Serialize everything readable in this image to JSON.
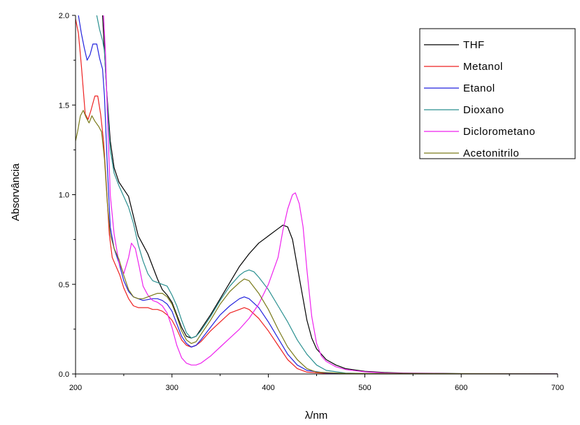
{
  "chart_data": {
    "type": "line",
    "title": "",
    "xlabel": "λ/nm",
    "ylabel": "Absorvância",
    "xlim": [
      200,
      700
    ],
    "ylim": [
      0,
      2.0
    ],
    "x_ticks": [
      "200",
      "300",
      "400",
      "500",
      "600",
      "700"
    ],
    "y_ticks": [
      "0.0",
      "0.5",
      "1.0",
      "1.5",
      "2.0"
    ],
    "grid": false,
    "legend_position": "top-right",
    "series": [
      {
        "name": "THF",
        "color": "#000000",
        "points": [
          [
            228,
            2.0
          ],
          [
            232,
            1.6
          ],
          [
            236,
            1.3
          ],
          [
            240,
            1.15
          ],
          [
            245,
            1.07
          ],
          [
            250,
            1.03
          ],
          [
            255,
            0.99
          ],
          [
            260,
            0.88
          ],
          [
            265,
            0.77
          ],
          [
            270,
            0.72
          ],
          [
            275,
            0.67
          ],
          [
            280,
            0.6
          ],
          [
            285,
            0.53
          ],
          [
            290,
            0.47
          ],
          [
            295,
            0.44
          ],
          [
            300,
            0.4
          ],
          [
            305,
            0.33
          ],
          [
            310,
            0.26
          ],
          [
            315,
            0.21
          ],
          [
            320,
            0.2
          ],
          [
            325,
            0.21
          ],
          [
            330,
            0.25
          ],
          [
            340,
            0.33
          ],
          [
            350,
            0.42
          ],
          [
            360,
            0.51
          ],
          [
            370,
            0.6
          ],
          [
            380,
            0.67
          ],
          [
            390,
            0.73
          ],
          [
            400,
            0.77
          ],
          [
            410,
            0.81
          ],
          [
            415,
            0.83
          ],
          [
            420,
            0.82
          ],
          [
            425,
            0.75
          ],
          [
            430,
            0.6
          ],
          [
            435,
            0.45
          ],
          [
            440,
            0.3
          ],
          [
            445,
            0.2
          ],
          [
            450,
            0.14
          ],
          [
            460,
            0.08
          ],
          [
            470,
            0.05
          ],
          [
            480,
            0.03
          ],
          [
            500,
            0.015
          ],
          [
            520,
            0.008
          ],
          [
            540,
            0.005
          ],
          [
            600,
            0.002
          ],
          [
            700,
            0.001
          ]
        ]
      },
      {
        "name": "Metanol",
        "color": "#ee2222",
        "points": [
          [
            200,
            1.98
          ],
          [
            203,
            1.9
          ],
          [
            206,
            1.72
          ],
          [
            210,
            1.45
          ],
          [
            213,
            1.42
          ],
          [
            216,
            1.47
          ],
          [
            220,
            1.55
          ],
          [
            223,
            1.55
          ],
          [
            226,
            1.45
          ],
          [
            229,
            1.3
          ],
          [
            232,
            1.05
          ],
          [
            235,
            0.78
          ],
          [
            238,
            0.65
          ],
          [
            242,
            0.6
          ],
          [
            246,
            0.55
          ],
          [
            250,
            0.48
          ],
          [
            255,
            0.42
          ],
          [
            260,
            0.38
          ],
          [
            265,
            0.37
          ],
          [
            270,
            0.37
          ],
          [
            275,
            0.37
          ],
          [
            280,
            0.36
          ],
          [
            285,
            0.36
          ],
          [
            290,
            0.35
          ],
          [
            295,
            0.33
          ],
          [
            300,
            0.3
          ],
          [
            305,
            0.25
          ],
          [
            310,
            0.19
          ],
          [
            315,
            0.16
          ],
          [
            320,
            0.15
          ],
          [
            325,
            0.16
          ],
          [
            330,
            0.18
          ],
          [
            340,
            0.24
          ],
          [
            350,
            0.29
          ],
          [
            360,
            0.34
          ],
          [
            370,
            0.36
          ],
          [
            375,
            0.37
          ],
          [
            380,
            0.36
          ],
          [
            390,
            0.31
          ],
          [
            400,
            0.24
          ],
          [
            410,
            0.16
          ],
          [
            420,
            0.08
          ],
          [
            430,
            0.03
          ],
          [
            440,
            0.01
          ],
          [
            460,
            0.003
          ],
          [
            500,
            0.001
          ],
          [
            700,
            0.0
          ]
        ]
      },
      {
        "name": "Etanol",
        "color": "#2222dd",
        "points": [
          [
            203,
            2.0
          ],
          [
            206,
            1.9
          ],
          [
            209,
            1.82
          ],
          [
            212,
            1.75
          ],
          [
            215,
            1.78
          ],
          [
            218,
            1.84
          ],
          [
            222,
            1.84
          ],
          [
            225,
            1.76
          ],
          [
            228,
            1.7
          ],
          [
            230,
            1.55
          ],
          [
            233,
            1.15
          ],
          [
            236,
            0.82
          ],
          [
            240,
            0.7
          ],
          [
            245,
            0.62
          ],
          [
            250,
            0.52
          ],
          [
            255,
            0.46
          ],
          [
            260,
            0.43
          ],
          [
            265,
            0.42
          ],
          [
            270,
            0.41
          ],
          [
            280,
            0.42
          ],
          [
            285,
            0.42
          ],
          [
            290,
            0.41
          ],
          [
            295,
            0.39
          ],
          [
            300,
            0.35
          ],
          [
            305,
            0.28
          ],
          [
            310,
            0.21
          ],
          [
            315,
            0.17
          ],
          [
            320,
            0.15
          ],
          [
            325,
            0.16
          ],
          [
            330,
            0.19
          ],
          [
            340,
            0.26
          ],
          [
            350,
            0.33
          ],
          [
            360,
            0.38
          ],
          [
            370,
            0.42
          ],
          [
            375,
            0.43
          ],
          [
            380,
            0.42
          ],
          [
            390,
            0.37
          ],
          [
            400,
            0.29
          ],
          [
            410,
            0.2
          ],
          [
            420,
            0.11
          ],
          [
            430,
            0.05
          ],
          [
            440,
            0.02
          ],
          [
            460,
            0.005
          ],
          [
            500,
            0.002
          ],
          [
            700,
            0.0
          ]
        ]
      },
      {
        "name": "Dioxano",
        "color": "#2a9090",
        "points": [
          [
            222,
            2.0
          ],
          [
            225,
            1.92
          ],
          [
            228,
            1.86
          ],
          [
            230,
            1.8
          ],
          [
            233,
            1.5
          ],
          [
            236,
            1.25
          ],
          [
            240,
            1.12
          ],
          [
            245,
            1.05
          ],
          [
            250,
            0.99
          ],
          [
            255,
            0.93
          ],
          [
            260,
            0.84
          ],
          [
            265,
            0.72
          ],
          [
            270,
            0.63
          ],
          [
            275,
            0.56
          ],
          [
            280,
            0.52
          ],
          [
            285,
            0.51
          ],
          [
            290,
            0.5
          ],
          [
            295,
            0.49
          ],
          [
            300,
            0.44
          ],
          [
            305,
            0.38
          ],
          [
            310,
            0.3
          ],
          [
            315,
            0.23
          ],
          [
            320,
            0.2
          ],
          [
            325,
            0.21
          ],
          [
            330,
            0.24
          ],
          [
            340,
            0.32
          ],
          [
            350,
            0.41
          ],
          [
            360,
            0.49
          ],
          [
            370,
            0.55
          ],
          [
            375,
            0.57
          ],
          [
            380,
            0.58
          ],
          [
            385,
            0.57
          ],
          [
            390,
            0.54
          ],
          [
            400,
            0.47
          ],
          [
            410,
            0.38
          ],
          [
            420,
            0.29
          ],
          [
            430,
            0.19
          ],
          [
            440,
            0.11
          ],
          [
            450,
            0.05
          ],
          [
            460,
            0.02
          ],
          [
            480,
            0.005
          ],
          [
            500,
            0.002
          ],
          [
            700,
            0.0
          ]
        ]
      },
      {
        "name": "Diclorometano",
        "color": "#ee22ee",
        "points": [
          [
            229,
            2.0
          ],
          [
            231,
            1.8
          ],
          [
            233,
            1.45
          ],
          [
            236,
            1.0
          ],
          [
            240,
            0.78
          ],
          [
            245,
            0.62
          ],
          [
            250,
            0.56
          ],
          [
            255,
            0.65
          ],
          [
            258,
            0.73
          ],
          [
            262,
            0.7
          ],
          [
            266,
            0.6
          ],
          [
            270,
            0.49
          ],
          [
            275,
            0.44
          ],
          [
            280,
            0.41
          ],
          [
            285,
            0.4
          ],
          [
            290,
            0.38
          ],
          [
            295,
            0.34
          ],
          [
            300,
            0.26
          ],
          [
            305,
            0.16
          ],
          [
            310,
            0.09
          ],
          [
            315,
            0.06
          ],
          [
            320,
            0.05
          ],
          [
            325,
            0.05
          ],
          [
            330,
            0.06
          ],
          [
            340,
            0.1
          ],
          [
            350,
            0.15
          ],
          [
            360,
            0.2
          ],
          [
            370,
            0.25
          ],
          [
            380,
            0.31
          ],
          [
            390,
            0.39
          ],
          [
            400,
            0.5
          ],
          [
            410,
            0.65
          ],
          [
            415,
            0.8
          ],
          [
            420,
            0.92
          ],
          [
            425,
            1.0
          ],
          [
            428,
            1.01
          ],
          [
            432,
            0.95
          ],
          [
            436,
            0.82
          ],
          [
            440,
            0.58
          ],
          [
            445,
            0.32
          ],
          [
            450,
            0.17
          ],
          [
            455,
            0.1
          ],
          [
            460,
            0.07
          ],
          [
            470,
            0.04
          ],
          [
            480,
            0.025
          ],
          [
            500,
            0.012
          ],
          [
            520,
            0.006
          ],
          [
            538,
            0.004
          ],
          [
            600,
            0.001
          ],
          [
            700,
            0.0
          ]
        ]
      },
      {
        "name": "Acetonitrilo",
        "color": "#7a7a1a",
        "points": [
          [
            200,
            1.3
          ],
          [
            202,
            1.35
          ],
          [
            205,
            1.44
          ],
          [
            208,
            1.47
          ],
          [
            211,
            1.43
          ],
          [
            214,
            1.4
          ],
          [
            217,
            1.44
          ],
          [
            220,
            1.41
          ],
          [
            224,
            1.38
          ],
          [
            227,
            1.35
          ],
          [
            230,
            1.2
          ],
          [
            233,
            0.95
          ],
          [
            236,
            0.78
          ],
          [
            240,
            0.7
          ],
          [
            245,
            0.64
          ],
          [
            250,
            0.55
          ],
          [
            255,
            0.47
          ],
          [
            260,
            0.43
          ],
          [
            265,
            0.42
          ],
          [
            270,
            0.42
          ],
          [
            280,
            0.44
          ],
          [
            285,
            0.45
          ],
          [
            290,
            0.45
          ],
          [
            295,
            0.43
          ],
          [
            300,
            0.39
          ],
          [
            305,
            0.32
          ],
          [
            310,
            0.24
          ],
          [
            315,
            0.19
          ],
          [
            320,
            0.17
          ],
          [
            325,
            0.18
          ],
          [
            330,
            0.22
          ],
          [
            340,
            0.3
          ],
          [
            350,
            0.39
          ],
          [
            360,
            0.46
          ],
          [
            370,
            0.51
          ],
          [
            375,
            0.53
          ],
          [
            380,
            0.52
          ],
          [
            390,
            0.45
          ],
          [
            400,
            0.36
          ],
          [
            410,
            0.25
          ],
          [
            420,
            0.15
          ],
          [
            430,
            0.08
          ],
          [
            440,
            0.03
          ],
          [
            450,
            0.01
          ],
          [
            480,
            0.003
          ],
          [
            700,
            0.0
          ]
        ]
      }
    ]
  }
}
